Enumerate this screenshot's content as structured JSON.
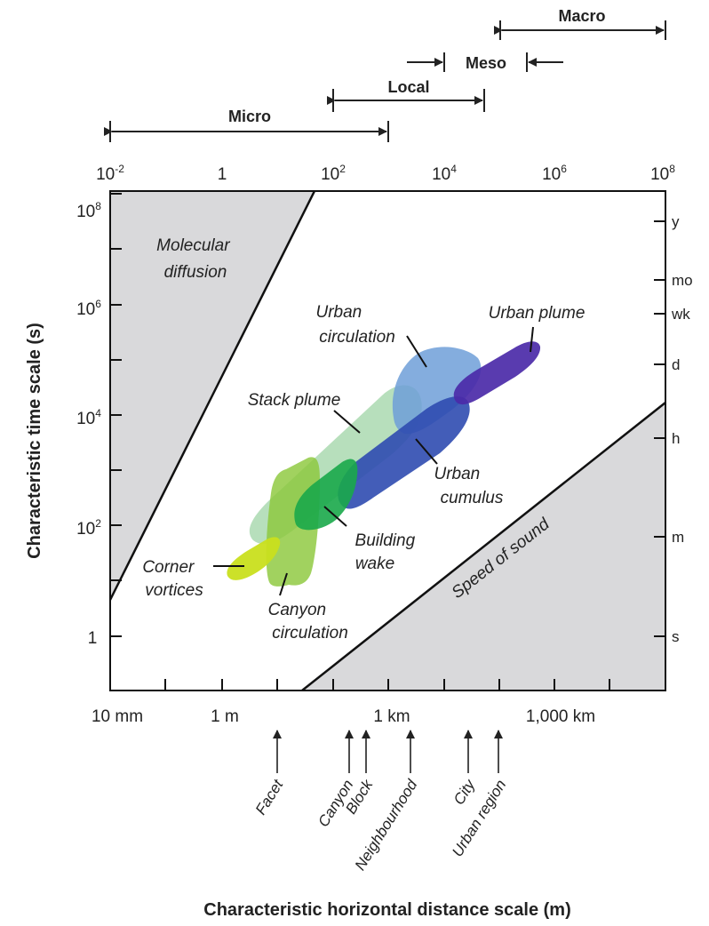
{
  "top_axis": {
    "ticks": [
      {
        "base": "10",
        "exp": "-2"
      },
      {
        "base": "1",
        "exp": ""
      },
      {
        "base": "10",
        "exp": "2"
      },
      {
        "base": "10",
        "exp": "4"
      },
      {
        "base": "10",
        "exp": "6"
      },
      {
        "base": "10",
        "exp": "8"
      }
    ]
  },
  "scales": [
    {
      "label": "Micro",
      "from_m": 0.01,
      "to_m": 1000
    },
    {
      "label": "Local",
      "from_m": 100,
      "to_m": 50000
    },
    {
      "label": "Meso",
      "from_m": 10000,
      "to_m": 200000
    },
    {
      "label": "Macro",
      "from_m": 100000,
      "to_m": 100000000
    }
  ],
  "left_axis": {
    "title": "Characteristic time scale (s)",
    "ticks": [
      {
        "base": "10",
        "exp": "8"
      },
      {
        "base": "10",
        "exp": "6"
      },
      {
        "base": "10",
        "exp": "4"
      },
      {
        "base": "10",
        "exp": "2"
      },
      {
        "base": "1",
        "exp": ""
      }
    ]
  },
  "right_axis": {
    "units": [
      "y",
      "mo",
      "wk",
      "d",
      "h",
      "m",
      "s"
    ]
  },
  "bottom_axis": {
    "title": "Characteristic horizontal distance scale (m)",
    "ticks": [
      "10 mm",
      "1 m",
      "1 km",
      "1,000 km"
    ]
  },
  "boundaries": {
    "molecular_diffusion": "Molecular diffusion",
    "speed_of_sound": "Speed of sound"
  },
  "phenomena": [
    {
      "label": "Urban plume",
      "color": "#4b2aa8"
    },
    {
      "label": "Urban circulation",
      "color": "#6f9fd8"
    },
    {
      "label": "Stack plume",
      "color": "#9fd4a6"
    },
    {
      "label": "Urban cumulus",
      "color": "#2f4bb0"
    },
    {
      "label": "Building wake",
      "color": "#1aa84a"
    },
    {
      "label": "Canyon circulation",
      "color": "#8cc83c"
    },
    {
      "label": "Corner vortices",
      "color": "#c9df1e"
    }
  ],
  "urban_units": [
    "Facet",
    "Canyon",
    "Block",
    "Neighbourhood",
    "City",
    "Urban region"
  ]
}
